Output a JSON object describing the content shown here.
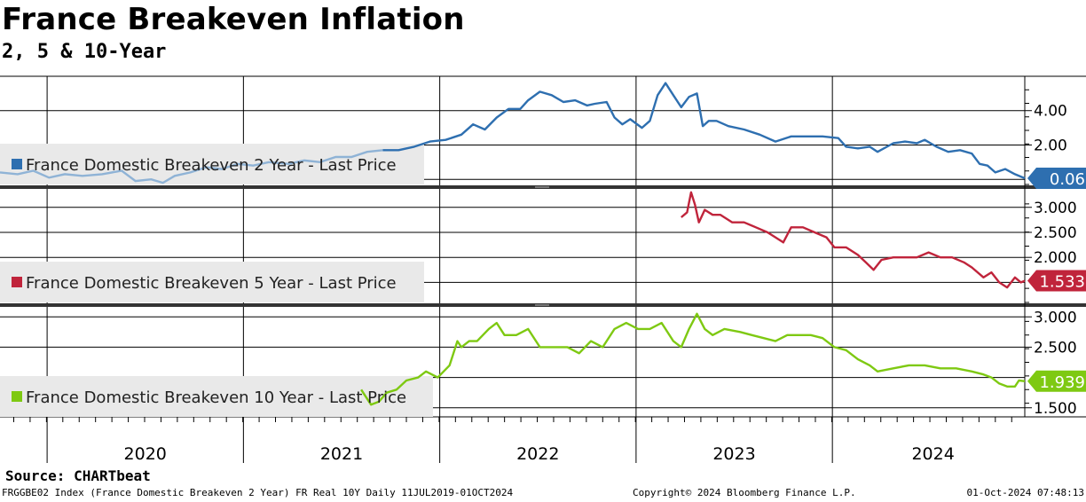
{
  "header": {
    "title": "France Breakeven Inflation",
    "subtitle": "2, 5 & 10-Year"
  },
  "footer": {
    "source": "Source: CHARTbeat",
    "ticker_info": "FRGGBE02 Index (France Domestic Breakeven 2 Year) FR Real 10Y  Daily 11JUL2019-01OCT2024",
    "copyright": "Copyright© 2024 Bloomberg Finance L.P.",
    "timestamp": "01-Oct-2024 07:48:13"
  },
  "chart_data": {
    "type": "line",
    "x_axis": {
      "labels": [
        "2020",
        "2021",
        "2022",
        "2023",
        "2024"
      ],
      "range": [
        2019.53,
        2024.75
      ]
    },
    "panels": [
      {
        "name": "2-year",
        "legend": "France Domestic Breakeven 2 Year - Last Price",
        "color": "#2e6fb0",
        "last_value": "0.06",
        "ylim": [
          -0.3,
          6.0
        ],
        "yticks": [
          {
            "v": 4.0,
            "label": "4.00"
          },
          {
            "v": 2.0,
            "label": "2.00"
          }
        ],
        "grid": [
          4.0,
          2.0,
          0.0
        ],
        "points": [
          [
            2019.53,
            0.4
          ],
          [
            2019.62,
            0.3
          ],
          [
            2019.7,
            0.5
          ],
          [
            2019.78,
            0.1
          ],
          [
            2019.86,
            0.3
          ],
          [
            2019.95,
            0.2
          ],
          [
            2020.05,
            0.3
          ],
          [
            2020.15,
            0.5
          ],
          [
            2020.22,
            -0.1
          ],
          [
            2020.3,
            0.0
          ],
          [
            2020.36,
            -0.2
          ],
          [
            2020.42,
            0.2
          ],
          [
            2020.5,
            0.4
          ],
          [
            2020.58,
            0.7
          ],
          [
            2020.66,
            0.6
          ],
          [
            2020.74,
            0.9
          ],
          [
            2020.82,
            0.8
          ],
          [
            2020.9,
            1.0
          ],
          [
            2021.0,
            0.9
          ],
          [
            2021.08,
            1.1
          ],
          [
            2021.16,
            1.0
          ],
          [
            2021.24,
            1.3
          ],
          [
            2021.32,
            1.3
          ],
          [
            2021.4,
            1.6
          ],
          [
            2021.48,
            1.7
          ],
          [
            2021.56,
            1.7
          ],
          [
            2021.64,
            1.9
          ],
          [
            2021.72,
            2.2
          ],
          [
            2021.8,
            2.3
          ],
          [
            2021.88,
            2.6
          ],
          [
            2021.94,
            3.2
          ],
          [
            2022.0,
            2.9
          ],
          [
            2022.06,
            3.6
          ],
          [
            2022.12,
            4.1
          ],
          [
            2022.18,
            4.1
          ],
          [
            2022.22,
            4.6
          ],
          [
            2022.28,
            5.1
          ],
          [
            2022.34,
            4.9
          ],
          [
            2022.4,
            4.5
          ],
          [
            2022.46,
            4.6
          ],
          [
            2022.52,
            4.3
          ],
          [
            2022.56,
            4.4
          ],
          [
            2022.62,
            4.5
          ],
          [
            2022.66,
            3.6
          ],
          [
            2022.7,
            3.2
          ],
          [
            2022.74,
            3.5
          ],
          [
            2022.8,
            3.0
          ],
          [
            2022.84,
            3.4
          ],
          [
            2022.88,
            4.9
          ],
          [
            2022.92,
            5.6
          ],
          [
            2022.96,
            4.9
          ],
          [
            2023.0,
            4.2
          ],
          [
            2023.04,
            4.8
          ],
          [
            2023.08,
            5.0
          ],
          [
            2023.11,
            3.1
          ],
          [
            2023.14,
            3.4
          ],
          [
            2023.18,
            3.4
          ],
          [
            2023.24,
            3.1
          ],
          [
            2023.32,
            2.9
          ],
          [
            2023.4,
            2.6
          ],
          [
            2023.48,
            2.2
          ],
          [
            2023.56,
            2.5
          ],
          [
            2023.64,
            2.5
          ],
          [
            2023.72,
            2.5
          ],
          [
            2023.8,
            2.4
          ],
          [
            2023.84,
            1.9
          ],
          [
            2023.9,
            1.8
          ],
          [
            2023.96,
            1.9
          ],
          [
            2024.0,
            1.6
          ],
          [
            2024.08,
            2.1
          ],
          [
            2024.14,
            2.2
          ],
          [
            2024.2,
            2.1
          ],
          [
            2024.24,
            2.3
          ],
          [
            2024.3,
            1.9
          ],
          [
            2024.36,
            1.6
          ],
          [
            2024.42,
            1.7
          ],
          [
            2024.48,
            1.5
          ],
          [
            2024.52,
            0.9
          ],
          [
            2024.56,
            0.8
          ],
          [
            2024.6,
            0.4
          ],
          [
            2024.65,
            0.6
          ],
          [
            2024.7,
            0.3
          ],
          [
            2024.75,
            0.06
          ]
        ]
      },
      {
        "name": "5-year",
        "legend": "France Domestic Breakeven 5 Year - Last Price",
        "color": "#c0243b",
        "last_value": "1.533",
        "ylim": [
          1.1,
          3.35
        ],
        "yticks": [
          {
            "v": 3.0,
            "label": "3.000"
          },
          {
            "v": 2.5,
            "label": "2.500"
          },
          {
            "v": 2.0,
            "label": "2.000"
          }
        ],
        "grid": [
          3.0,
          2.5,
          2.0,
          1.5
        ],
        "points": [
          [
            2023.0,
            2.8
          ],
          [
            2023.03,
            2.9
          ],
          [
            2023.05,
            3.3
          ],
          [
            2023.07,
            3.05
          ],
          [
            2023.09,
            2.7
          ],
          [
            2023.12,
            2.95
          ],
          [
            2023.16,
            2.85
          ],
          [
            2023.2,
            2.85
          ],
          [
            2023.26,
            2.7
          ],
          [
            2023.32,
            2.7
          ],
          [
            2023.38,
            2.6
          ],
          [
            2023.44,
            2.5
          ],
          [
            2023.48,
            2.4
          ],
          [
            2023.52,
            2.3
          ],
          [
            2023.56,
            2.6
          ],
          [
            2023.62,
            2.6
          ],
          [
            2023.68,
            2.5
          ],
          [
            2023.74,
            2.4
          ],
          [
            2023.78,
            2.2
          ],
          [
            2023.84,
            2.2
          ],
          [
            2023.9,
            2.05
          ],
          [
            2023.94,
            1.9
          ],
          [
            2023.98,
            1.75
          ],
          [
            2024.02,
            1.95
          ],
          [
            2024.08,
            2.0
          ],
          [
            2024.14,
            2.0
          ],
          [
            2024.2,
            2.0
          ],
          [
            2024.26,
            2.1
          ],
          [
            2024.32,
            2.0
          ],
          [
            2024.38,
            2.0
          ],
          [
            2024.44,
            1.9
          ],
          [
            2024.48,
            1.8
          ],
          [
            2024.54,
            1.6
          ],
          [
            2024.58,
            1.7
          ],
          [
            2024.62,
            1.5
          ],
          [
            2024.66,
            1.4
          ],
          [
            2024.7,
            1.6
          ],
          [
            2024.73,
            1.5
          ],
          [
            2024.75,
            1.533
          ]
        ]
      },
      {
        "name": "10-year",
        "legend": "France Domestic Breakeven 10 Year - Last Price",
        "color": "#7ec912",
        "last_value": "1.939",
        "ylim": [
          1.35,
          3.15
        ],
        "yticks": [
          {
            "v": 3.0,
            "label": "3.000"
          },
          {
            "v": 2.5,
            "label": "2.500"
          },
          {
            "v": 1.5,
            "label": "1.500"
          }
        ],
        "grid": [
          3.0,
          2.5,
          2.0,
          1.5
        ],
        "points": [
          [
            2021.37,
            1.8
          ],
          [
            2021.42,
            1.55
          ],
          [
            2021.46,
            1.6
          ],
          [
            2021.5,
            1.75
          ],
          [
            2021.55,
            1.8
          ],
          [
            2021.6,
            1.95
          ],
          [
            2021.66,
            2.0
          ],
          [
            2021.7,
            2.1
          ],
          [
            2021.76,
            2.0
          ],
          [
            2021.82,
            2.2
          ],
          [
            2021.86,
            2.6
          ],
          [
            2021.88,
            2.5
          ],
          [
            2021.92,
            2.6
          ],
          [
            2021.96,
            2.6
          ],
          [
            2022.02,
            2.8
          ],
          [
            2022.06,
            2.9
          ],
          [
            2022.1,
            2.7
          ],
          [
            2022.16,
            2.7
          ],
          [
            2022.22,
            2.8
          ],
          [
            2022.28,
            2.5
          ],
          [
            2022.36,
            2.5
          ],
          [
            2022.42,
            2.5
          ],
          [
            2022.48,
            2.4
          ],
          [
            2022.54,
            2.6
          ],
          [
            2022.6,
            2.5
          ],
          [
            2022.66,
            2.8
          ],
          [
            2022.72,
            2.9
          ],
          [
            2022.78,
            2.8
          ],
          [
            2022.84,
            2.8
          ],
          [
            2022.9,
            2.9
          ],
          [
            2022.96,
            2.6
          ],
          [
            2023.0,
            2.5
          ],
          [
            2023.04,
            2.8
          ],
          [
            2023.08,
            3.05
          ],
          [
            2023.12,
            2.8
          ],
          [
            2023.16,
            2.7
          ],
          [
            2023.22,
            2.8
          ],
          [
            2023.3,
            2.75
          ],
          [
            2023.36,
            2.7
          ],
          [
            2023.42,
            2.65
          ],
          [
            2023.48,
            2.6
          ],
          [
            2023.54,
            2.7
          ],
          [
            2023.6,
            2.7
          ],
          [
            2023.66,
            2.7
          ],
          [
            2023.72,
            2.65
          ],
          [
            2023.78,
            2.5
          ],
          [
            2023.84,
            2.45
          ],
          [
            2023.9,
            2.3
          ],
          [
            2023.96,
            2.2
          ],
          [
            2024.0,
            2.1
          ],
          [
            2024.08,
            2.15
          ],
          [
            2024.16,
            2.2
          ],
          [
            2024.24,
            2.2
          ],
          [
            2024.32,
            2.15
          ],
          [
            2024.4,
            2.15
          ],
          [
            2024.48,
            2.1
          ],
          [
            2024.54,
            2.05
          ],
          [
            2024.58,
            2.0
          ],
          [
            2024.62,
            1.9
          ],
          [
            2024.66,
            1.85
          ],
          [
            2024.7,
            1.85
          ],
          [
            2024.72,
            1.95
          ],
          [
            2024.75,
            1.939
          ]
        ]
      }
    ]
  }
}
